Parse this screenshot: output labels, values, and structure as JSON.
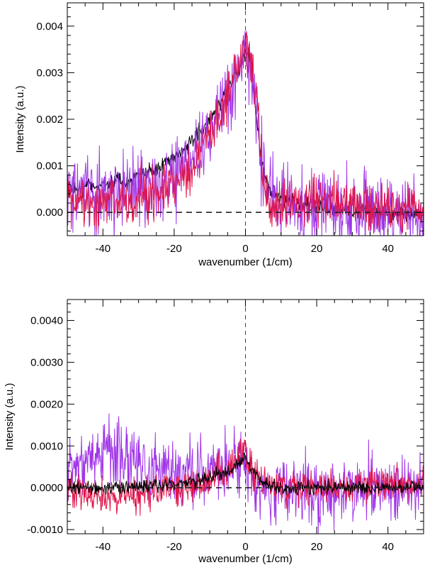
{
  "chart_data": [
    {
      "type": "line",
      "panel": "top",
      "xlabel": "wavenumber (1/cm)",
      "ylabel": "Intensity (a.u.)",
      "xlim": [
        -50,
        50
      ],
      "ylim": [
        -0.0005,
        0.0045
      ],
      "xticks": [
        -40,
        -20,
        0,
        20,
        40
      ],
      "xtick_labels": [
        "-40",
        "-20",
        "0",
        "20",
        "40"
      ],
      "yticks": [
        0.0,
        0.001,
        0.002,
        0.003,
        0.004
      ],
      "ytick_labels": [
        "0.000",
        "0.001",
        "0.002",
        "0.003",
        "0.004"
      ],
      "reference_lines": {
        "horizontal_dashed_y": 0.0,
        "vertical_dashed_x": 0.0
      },
      "series": [
        {
          "color": "#000000",
          "x": [
            -50,
            -45,
            -40,
            -35,
            -30,
            -25,
            -20,
            -15,
            -10,
            -6,
            -4,
            -2,
            0,
            1,
            2,
            3,
            4,
            5,
            7,
            10,
            15,
            20,
            25,
            30,
            35,
            40,
            45,
            50
          ],
          "y": [
            0.00045,
            0.00055,
            0.0006,
            0.00065,
            0.00075,
            0.00095,
            0.0012,
            0.0015,
            0.002,
            0.0025,
            0.0028,
            0.003,
            0.0034,
            0.0033,
            0.0029,
            0.0022,
            0.0015,
            0.0009,
            0.0004,
            0.0003,
            0.00015,
            0.0001,
            5e-05,
            0.0,
            0.0,
            -5e-05,
            0.0,
            -0.0001
          ],
          "noise": 9e-05
        },
        {
          "color": "#a035e8",
          "x": [
            -50,
            -45,
            -40,
            -35,
            -30,
            -25,
            -20,
            -15,
            -10,
            -6,
            -4,
            -2,
            0,
            1,
            2,
            3,
            4,
            5,
            7,
            10,
            15,
            20,
            25,
            30,
            35,
            40,
            45,
            50
          ],
          "y": [
            0.0005,
            0.0004,
            0.0004,
            0.0004,
            0.00045,
            0.0006,
            0.0008,
            0.0011,
            0.0017,
            0.0023,
            0.0027,
            0.003,
            0.0033,
            0.0032,
            0.0028,
            0.0022,
            0.0015,
            0.0008,
            0.0004,
            0.0002,
            0.00015,
            0.0001,
            0.0001,
            5e-05,
            0.0,
            0.0,
            0.0,
            -0.0001
          ],
          "noise": 0.0004
        },
        {
          "color": "#e0144a",
          "x": [
            -50,
            -45,
            -40,
            -35,
            -30,
            -25,
            -20,
            -15,
            -10,
            -6,
            -4,
            -2,
            0,
            1,
            2,
            3,
            4,
            5,
            7,
            10,
            15,
            20,
            25,
            30,
            35,
            40,
            45,
            50
          ],
          "y": [
            0.0003,
            0.0002,
            0.0002,
            0.0002,
            0.00025,
            0.0004,
            0.0006,
            0.0009,
            0.0016,
            0.0023,
            0.0028,
            0.0032,
            0.0035,
            0.0034,
            0.003,
            0.0024,
            0.0015,
            0.0006,
            0.0002,
            0.0002,
            0.0002,
            0.0002,
            0.00025,
            0.0002,
            0.00015,
            0.0001,
            0.0001,
            0.0001
          ],
          "noise": 0.00025
        }
      ]
    },
    {
      "type": "line",
      "panel": "bottom",
      "xlabel": "wavenumber (1/cm)",
      "ylabel": "Intensity (a.u.)",
      "xlim": [
        -50,
        50
      ],
      "ylim": [
        -0.0011,
        0.0045
      ],
      "xticks": [
        -40,
        -20,
        0,
        20,
        40
      ],
      "xtick_labels": [
        "-40",
        "-20",
        "0",
        "20",
        "40"
      ],
      "yticks": [
        -0.001,
        0.0,
        0.001,
        0.002,
        0.003,
        0.004
      ],
      "ytick_labels": [
        "-0.0010",
        "0.0000",
        "0.0010",
        "0.0020",
        "0.0030",
        "0.0040"
      ],
      "reference_lines": {
        "horizontal_dashed_y": 0.0,
        "vertical_dashed_x": 0.0
      },
      "series": [
        {
          "color": "#a035e8",
          "x": [
            -50,
            -45,
            -40,
            -35,
            -30,
            -25,
            -20,
            -15,
            -10,
            -5,
            -2,
            0,
            2,
            5,
            10,
            20,
            30,
            40,
            50
          ],
          "y": [
            0.0004,
            0.0008,
            0.0008,
            0.0008,
            0.0006,
            0.0005,
            0.0004,
            0.0004,
            0.0004,
            0.0005,
            0.0006,
            0.0006,
            0.0002,
            0.0,
            0.0,
            0.0,
            0.0,
            0.0,
            0.0
          ],
          "noise": 0.0004
        },
        {
          "color": "#e0144a",
          "x": [
            -50,
            -40,
            -30,
            -20,
            -10,
            -5,
            -2,
            0,
            2,
            5,
            10,
            20,
            30,
            40,
            50
          ],
          "y": [
            0.0,
            -0.0002,
            -0.0002,
            0.0,
            0.0002,
            0.0005,
            0.0008,
            0.001,
            0.0004,
            0.0001,
            0.0,
            0.0,
            5e-05,
            0.0001,
            0.0001
          ],
          "noise": 0.0002
        },
        {
          "color": "#000000",
          "x": [
            -50,
            -40,
            -30,
            -20,
            -10,
            -5,
            -2,
            0,
            2,
            5,
            10,
            20,
            30,
            40,
            50
          ],
          "y": [
            0.0,
            0.0,
            5e-05,
            0.0001,
            0.0002,
            0.0004,
            0.0006,
            0.0007,
            0.0004,
            0.0001,
            0.0,
            0.0,
            0.0,
            0.0,
            0.0
          ],
          "noise": 8e-05
        }
      ]
    }
  ]
}
